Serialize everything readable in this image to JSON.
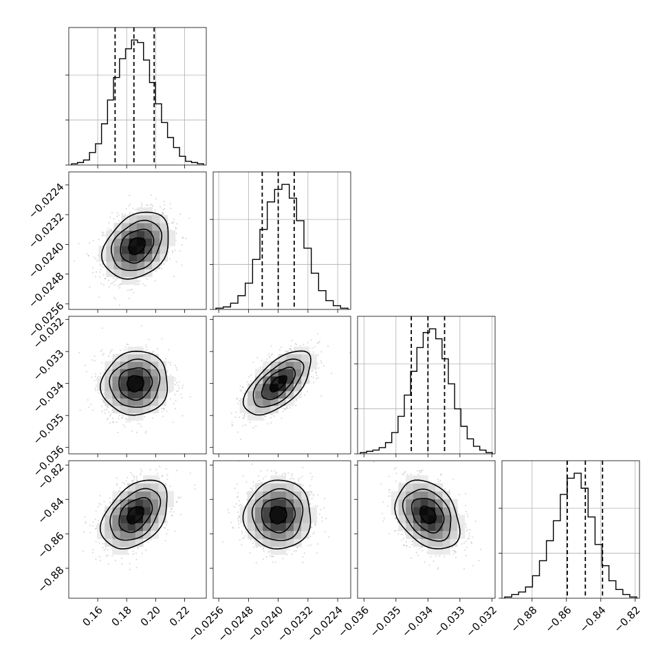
{
  "chart_data": {
    "type": "corner",
    "parameters": [
      {
        "range": [
          0.14,
          0.235
        ],
        "ticks": [
          0.16,
          0.18,
          0.2,
          0.22
        ],
        "tick_labels": [
          "0.16",
          "0.18",
          "0.20",
          "0.22"
        ],
        "median": 0.185,
        "quantiles": [
          0.172,
          0.185,
          0.199
        ],
        "hist": [
          0.01,
          0.02,
          0.04,
          0.1,
          0.17,
          0.33,
          0.52,
          0.7,
          0.85,
          0.93,
          1.0,
          0.98,
          0.84,
          0.66,
          0.49,
          0.34,
          0.22,
          0.14,
          0.07,
          0.03,
          0.02,
          0.01
        ]
      },
      {
        "range": [
          -0.02575,
          -0.02205
        ],
        "ticks": [
          -0.0256,
          -0.0248,
          -0.024,
          -0.0232,
          -0.0224
        ],
        "tick_labels": [
          "−0.0256",
          "−0.0248",
          "−0.0240",
          "−0.0232",
          "−0.0224"
        ],
        "median": -0.024,
        "quantiles": [
          -0.02443,
          -0.024,
          -0.02357
        ],
        "hist": [
          0.01,
          0.02,
          0.05,
          0.11,
          0.21,
          0.4,
          0.64,
          0.86,
          0.96,
          1.0,
          0.89,
          0.71,
          0.49,
          0.29,
          0.15,
          0.07,
          0.03,
          0.01
        ]
      },
      {
        "range": [
          -0.0362,
          -0.0319
        ],
        "ticks": [
          -0.036,
          -0.035,
          -0.034,
          -0.033,
          -0.032
        ],
        "tick_labels": [
          "−0.036",
          "−0.035",
          "−0.034",
          "−0.033",
          "−0.032"
        ],
        "median": -0.034,
        "quantiles": [
          -0.03452,
          -0.034,
          -0.03348
        ],
        "hist": [
          0.01,
          0.02,
          0.03,
          0.05,
          0.09,
          0.17,
          0.3,
          0.47,
          0.66,
          0.85,
          0.97,
          1.0,
          0.92,
          0.76,
          0.56,
          0.36,
          0.22,
          0.12,
          0.06,
          0.03,
          0.01
        ]
      },
      {
        "range": [
          -0.8975,
          -0.8175
        ],
        "ticks": [
          -0.88,
          -0.86,
          -0.84,
          -0.82
        ],
        "tick_labels": [
          "−0.88",
          "−0.86",
          "−0.84",
          "−0.82"
        ],
        "median": -0.849,
        "quantiles": [
          -0.8595,
          -0.849,
          -0.839
        ],
        "hist": [
          0.01,
          0.03,
          0.05,
          0.09,
          0.18,
          0.3,
          0.46,
          0.62,
          0.83,
          0.96,
          1.0,
          0.88,
          0.65,
          0.43,
          0.26,
          0.14,
          0.07,
          0.03,
          0.01
        ]
      }
    ],
    "hist_yticks": [
      0.0,
      0.36,
      0.72
    ],
    "pairs": [
      {
        "x": 0,
        "y": 1,
        "center": [
          0.187,
          -0.02404
        ],
        "sigma": [
          0.0115,
          0.00045
        ],
        "rho": 0.28
      },
      {
        "x": 0,
        "y": 2,
        "center": [
          0.186,
          -0.034
        ],
        "sigma": [
          0.0115,
          0.0005
        ],
        "rho": 0.05
      },
      {
        "x": 1,
        "y": 2,
        "center": [
          -0.024,
          -0.034
        ],
        "sigma": [
          0.00045,
          0.0005
        ],
        "rho": 0.62
      },
      {
        "x": 0,
        "y": 3,
        "center": [
          0.186,
          -0.849
        ],
        "sigma": [
          0.0115,
          0.01
        ],
        "rho": 0.4
      },
      {
        "x": 1,
        "y": 3,
        "center": [
          -0.024,
          -0.849
        ],
        "sigma": [
          0.00045,
          0.01
        ],
        "rho": 0.02
      },
      {
        "x": 2,
        "y": 3,
        "center": [
          -0.034,
          -0.849
        ],
        "sigma": [
          0.0005,
          0.01
        ],
        "rho": -0.32
      }
    ],
    "contour_levels_sigma": [
      0.5,
      1.0,
      1.5,
      2.0
    ],
    "grid": true,
    "title": "",
    "xlabel": "",
    "ylabel": ""
  }
}
